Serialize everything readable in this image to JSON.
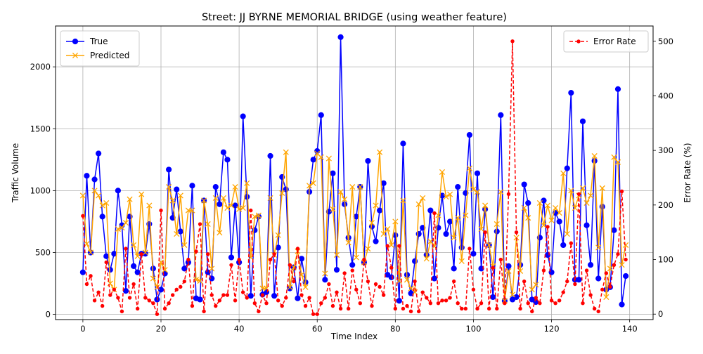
{
  "chart_data": {
    "type": "line",
    "title": "Street: JJ BYRNE MEMORIAL BRIDGE (using weather feature)",
    "xlabel": "Time Index",
    "ylabel_left": "Traffic Volume",
    "ylabel_right": "Error Rate (%)",
    "xlim": [
      -7,
      146
    ],
    "ylim_left": [
      -42,
      2330
    ],
    "ylim_right": [
      -10,
      528
    ],
    "x_ticks": [
      0,
      20,
      40,
      60,
      80,
      100,
      120,
      140
    ],
    "y_ticks_left": [
      0,
      500,
      1000,
      1500,
      2000
    ],
    "y_ticks_right": [
      0,
      100,
      200,
      300,
      400,
      500
    ],
    "grid": true,
    "legend_left_position": "upper-left",
    "legend_right_position": "upper-right",
    "series": [
      {
        "name": "True",
        "axis": "left",
        "color": "#0000ff",
        "marker": "circle",
        "style": "solid",
        "values": [
          340,
          1120,
          500,
          1090,
          1300,
          790,
          470,
          360,
          490,
          1000,
          720,
          190,
          790,
          390,
          340,
          490,
          490,
          730,
          370,
          120,
          200,
          330,
          1170,
          780,
          1010,
          670,
          370,
          420,
          1040,
          130,
          120,
          920,
          340,
          290,
          1030,
          890,
          1310,
          1250,
          460,
          880,
          420,
          1600,
          950,
          150,
          680,
          790,
          160,
          180,
          1280,
          150,
          540,
          1110,
          1010,
          210,
          380,
          130,
          450,
          260,
          990,
          1250,
          1320,
          1610,
          280,
          830,
          1140,
          360,
          2240,
          890,
          620,
          400,
          790,
          1030,
          420,
          1240,
          710,
          590,
          840,
          1060,
          320,
          300,
          640,
          110,
          1380,
          320,
          170,
          430,
          650,
          700,
          480,
          840,
          290,
          700,
          960,
          650,
          750,
          370,
          1030,
          540,
          980,
          1450,
          490,
          1140,
          370,
          850,
          560,
          140,
          670,
          1610,
          110,
          390,
          120,
          140,
          400,
          1050,
          900,
          120,
          100,
          620,
          920,
          480,
          340,
          820,
          750,
          560,
          1180,
          1790,
          280,
          280,
          1560,
          720,
          400,
          1240,
          290,
          870,
          200,
          220,
          680,
          1820,
          80,
          310
        ]
      },
      {
        "name": "Predicted",
        "axis": "left",
        "color": "#ffa500",
        "marker": "x",
        "style": "solid",
        "values": [
          960,
          570,
          500,
          1000,
          960,
          880,
          900,
          250,
          200,
          690,
          700,
          740,
          930,
          560,
          470,
          970,
          500,
          880,
          290,
          220,
          420,
          360,
          1030,
          920,
          650,
          960,
          560,
          840,
          840,
          280,
          270,
          920,
          730,
          370,
          940,
          660,
          940,
          860,
          880,
          1030,
          850,
          860,
          1060,
          460,
          790,
          800,
          210,
          210,
          940,
          480,
          640,
          980,
          1310,
          220,
          380,
          510,
          320,
          220,
          1040,
          1060,
          1300,
          1270,
          330,
          1260,
          850,
          480,
          990,
          930,
          580,
          1030,
          460,
          1030,
          420,
          530,
          740,
          880,
          1310,
          650,
          690,
          560,
          750,
          270,
          920,
          280,
          210,
          180,
          890,
          940,
          450,
          590,
          550,
          800,
          1150,
          950,
          970,
          620,
          780,
          430,
          800,
          1180,
          1010,
          990,
          690,
          880,
          560,
          390,
          730,
          990,
          110,
          350,
          160,
          620,
          350,
          860,
          780,
          200,
          240,
          900,
          720,
          880,
          760,
          860,
          820,
          1140,
          650,
          1000,
          860,
          960,
          1020,
          900,
          960,
          1280,
          540,
          1020,
          140,
          370,
          1270,
          1230,
          400,
          560
        ]
      },
      {
        "name": "Error Rate",
        "axis": "right",
        "color": "#ff0000",
        "marker": "dot",
        "style": "dashed",
        "values": [
          180,
          55,
          70,
          25,
          40,
          15,
          95,
          35,
          45,
          30,
          5,
          120,
          30,
          55,
          10,
          110,
          30,
          25,
          20,
          0,
          190,
          10,
          20,
          35,
          45,
          50,
          60,
          100,
          15,
          115,
          165,
          5,
          110,
          35,
          15,
          25,
          35,
          35,
          90,
          25,
          100,
          40,
          30,
          190,
          20,
          5,
          35,
          20,
          100,
          110,
          25,
          15,
          30,
          90,
          60,
          120,
          35,
          15,
          30,
          0,
          0,
          20,
          30,
          55,
          15,
          40,
          10,
          75,
          10,
          80,
          45,
          20,
          100,
          60,
          15,
          55,
          50,
          35,
          125,
          85,
          10,
          125,
          10,
          15,
          5,
          60,
          5,
          40,
          30,
          20,
          185,
          20,
          25,
          25,
          30,
          60,
          20,
          10,
          10,
          120,
          45,
          10,
          20,
          150,
          10,
          85,
          10,
          100,
          20,
          220,
          500,
          150,
          10,
          60,
          20,
          5,
          30,
          20,
          80,
          160,
          25,
          20,
          25,
          40,
          60,
          130,
          55,
          220,
          20,
          80,
          35,
          10,
          5,
          45,
          75,
          50,
          90,
          110,
          225,
          100
        ]
      }
    ]
  }
}
